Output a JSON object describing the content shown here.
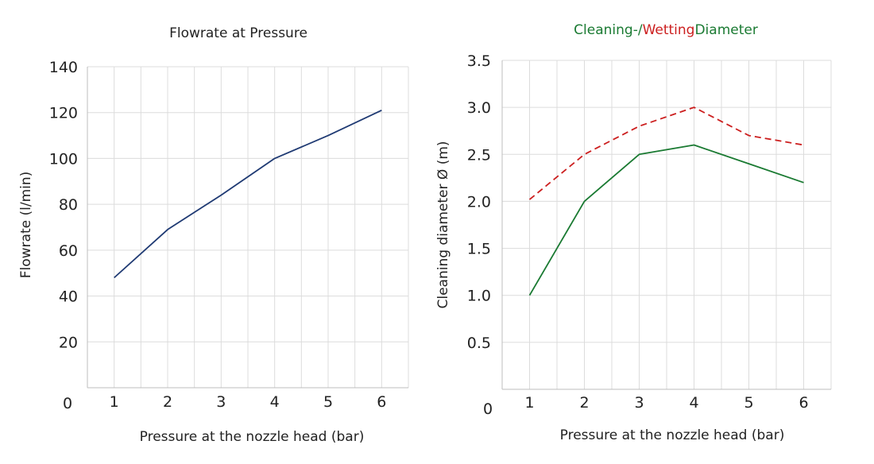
{
  "colors": {
    "flow_line": "#1f3a73",
    "cleaning_green": "#1a7a32",
    "wetting_red": "#cc1f1f"
  },
  "chart_data": [
    {
      "type": "line",
      "title": "Flowrate at Pressure",
      "xlabel": "Pressure at the nozzle head (bar)",
      "ylabel": "Flowrate (l/min)",
      "x": [
        1,
        2,
        3,
        4,
        5,
        6
      ],
      "x_tick_labels": [
        "1",
        "2",
        "3",
        "4",
        "5",
        "6"
      ],
      "xlim": [
        0.5,
        6.5
      ],
      "ylim": [
        0,
        140
      ],
      "y_origin_label": "0",
      "y_tick_labels": [
        "20",
        "40",
        "60",
        "80",
        "100",
        "120",
        "140"
      ],
      "grid": true,
      "series": [
        {
          "values": [
            48,
            69,
            84,
            100,
            110,
            121
          ],
          "color": "#1f3a73",
          "style": "solid"
        }
      ]
    },
    {
      "type": "line",
      "title_parts": [
        {
          "text": "Cleaning-/",
          "color": "#1a7a32"
        },
        {
          "text": "Wetting",
          "color": "#cc1f1f"
        },
        {
          "text": "Diameter",
          "color": "#1a7a32"
        }
      ],
      "xlabel": "Pressure at the nozzle head (bar)",
      "ylabel": "Cleaning diameter Ø (m)",
      "x": [
        1,
        2,
        3,
        4,
        5,
        6
      ],
      "x_tick_labels": [
        "1",
        "2",
        "3",
        "4",
        "5",
        "6"
      ],
      "xlim": [
        0.5,
        6.5
      ],
      "ylim": [
        0,
        3.5
      ],
      "y_origin_label": "0",
      "y_tick_labels": [
        "0.5",
        "1.0",
        "1.5",
        "2.0",
        "2.5",
        "3.0",
        "3.5"
      ],
      "grid": true,
      "series": [
        {
          "values": [
            2.02,
            2.5,
            2.8,
            3.0,
            2.7,
            2.6
          ],
          "color": "#cc1f1f",
          "style": "dashed"
        },
        {
          "values": [
            1.0,
            2.0,
            2.5,
            2.6,
            2.4,
            2.2
          ],
          "color": "#1a7a32",
          "style": "solid"
        }
      ]
    }
  ]
}
